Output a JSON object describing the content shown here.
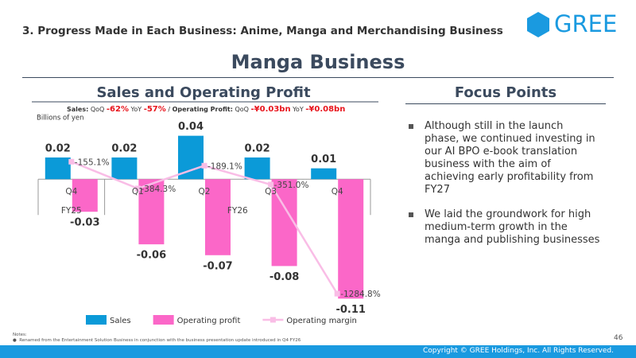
{
  "header": "3. Progress Made in Each Business: Anime, Manga and Merchandising Business",
  "logo": "GREE",
  "page_title": "Manga Business",
  "chart_data": {
    "type": "bar-line",
    "title": "Sales and Operating Profit",
    "subtitle": [
      "Sales:",
      "QoQ",
      "-62%",
      "YoY",
      "-57%",
      "/",
      "Operating Profit:",
      "QoQ",
      "-¥0.03bn",
      "YoY",
      "-¥0.08bn"
    ],
    "unit_label": "Billions of yen",
    "categories": [
      "Q4",
      "Q1",
      "Q2",
      "Q3",
      "Q4"
    ],
    "fiscal_years": [
      "FY25",
      "FY26"
    ],
    "ylim": [
      -0.12,
      0.05
    ],
    "y2lim": [
      -1420,
      160
    ],
    "series": [
      {
        "name": "Sales",
        "type": "bar",
        "color": "#0b9ad8",
        "values": [
          0.02,
          0.02,
          0.04,
          0.02,
          0.01
        ]
      },
      {
        "name": "Operating profit",
        "type": "bar",
        "color": "#fb67c8",
        "values": [
          -0.03,
          -0.06,
          -0.07,
          -0.08,
          -0.11
        ]
      },
      {
        "name": "Operating margin",
        "type": "line",
        "axis": "y2",
        "color": "#f9bde6",
        "values": [
          -155.1,
          -384.3,
          -189.1,
          -351.0,
          -1284.8
        ],
        "value_labels": [
          "-155.1%",
          "-384.3%",
          "-189.1%",
          "-351.0%",
          "-1284.8%"
        ]
      }
    ]
  },
  "focus": {
    "title": "Focus Points",
    "items": [
      "Although still in the launch phase, we continued investing in our AI BPO e-book translation business with the aim of achieving early profitability from FY27",
      "We laid the groundwork for high medium-term growth in the manga and publishing businesses"
    ]
  },
  "notes": {
    "title": "Notes:",
    "items": [
      "Renamed from the Entertainment Solution Business in conjunction with the business presentation update introduced in Q4 FY26"
    ]
  },
  "page_number": "46",
  "copyright": "Copyright © GREE Holdings, Inc. All Rights Reserved."
}
